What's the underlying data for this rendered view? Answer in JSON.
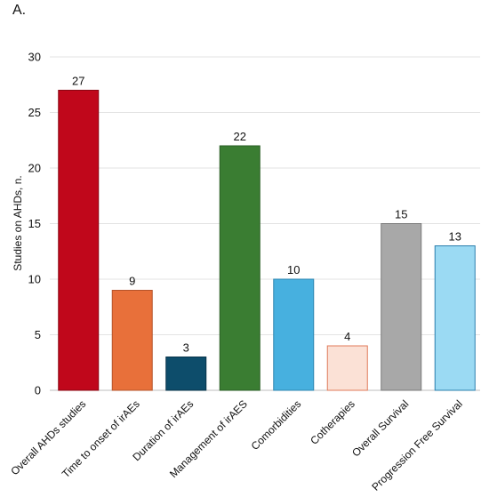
{
  "panel_label": "A.",
  "chart_data": {
    "type": "bar",
    "title": "",
    "xlabel": "",
    "ylabel": "Studies on AHDs, n.",
    "ylim": [
      0,
      30
    ],
    "yticks": [
      0,
      5,
      10,
      15,
      20,
      25,
      30
    ],
    "grid": true,
    "categories": [
      "Overall AHDs studies",
      "Time to onset of irAEs",
      "Duration of irAEs",
      "Management of irAES",
      "Comorbidities",
      "Cotherapies",
      "Overall Survival",
      "Progression Free Survival"
    ],
    "values": [
      27,
      9,
      3,
      22,
      10,
      4,
      15,
      13
    ],
    "colors": [
      "#c0071b",
      "#e8703a",
      "#0d4d6b",
      "#3a7d32",
      "#47b0df",
      "#fbe1d6",
      "#a8a8a8",
      "#9bdaf3"
    ],
    "edge_colors": [
      "#8a0512",
      "#b5532a",
      "#08344a",
      "#2a5e24",
      "#2e86b0",
      "#e07a5a",
      "#7a7a7a",
      "#2a7fae"
    ]
  }
}
